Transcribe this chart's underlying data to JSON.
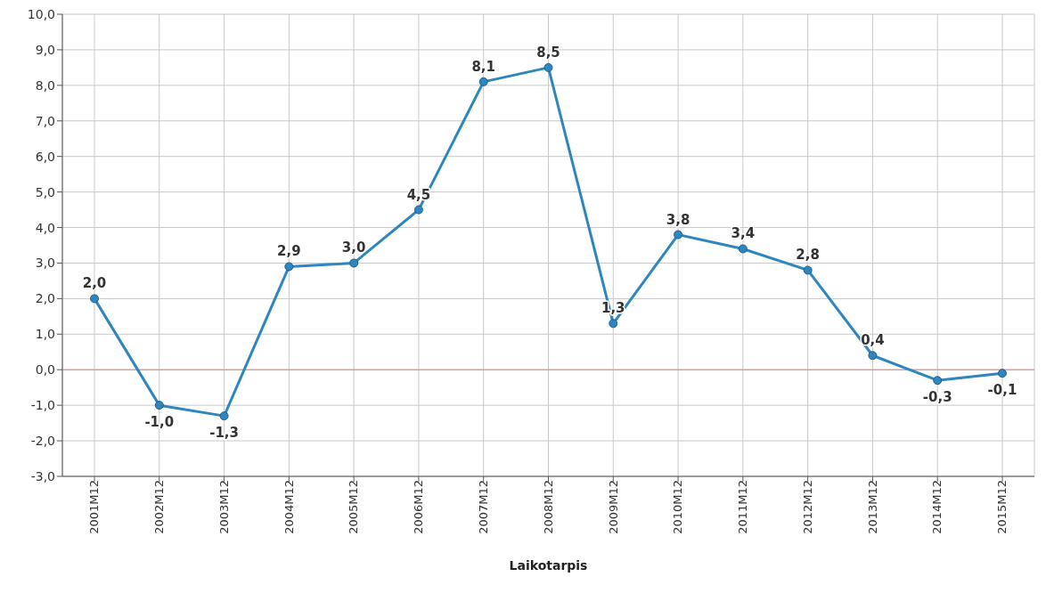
{
  "chart_data": {
    "type": "line",
    "xlabel": "Laikotarpis",
    "categories": [
      "2001M12",
      "2002M12",
      "2003M12",
      "2004M12",
      "2005M12",
      "2006M12",
      "2007M12",
      "2008M12",
      "2009M12",
      "2010M12",
      "2011M12",
      "2012M12",
      "2013M12",
      "2014M12",
      "2015M12"
    ],
    "series": [
      {
        "color": "#2e86c1",
        "values": [
          2.0,
          -1.0,
          -1.3,
          2.9,
          3.0,
          4.5,
          8.1,
          8.5,
          1.3,
          3.8,
          3.4,
          2.8,
          0.4,
          -0.3,
          -0.1
        ],
        "value_labels": [
          "2,0",
          "-1,0",
          "-1,3",
          "2,9",
          "3,0",
          "4,5",
          "8,1",
          "8,5",
          "1,3",
          "3,8",
          "3,4",
          "2,8",
          "0,4",
          "-0,3",
          "-0,1"
        ]
      }
    ],
    "ylim": [
      -3,
      10
    ],
    "yticks": [
      {
        "value": -3,
        "label": "-3,0"
      },
      {
        "value": -2,
        "label": "-2,0"
      },
      {
        "value": -1,
        "label": "-1,0"
      },
      {
        "value": 0,
        "label": "0,0"
      },
      {
        "value": 1,
        "label": "1,0"
      },
      {
        "value": 2,
        "label": "2,0"
      },
      {
        "value": 3,
        "label": "3,0"
      },
      {
        "value": 4,
        "label": "4,0"
      },
      {
        "value": 5,
        "label": "5,0"
      },
      {
        "value": 6,
        "label": "6,0"
      },
      {
        "value": 7,
        "label": "7,0"
      },
      {
        "value": 8,
        "label": "8,0"
      },
      {
        "value": 9,
        "label": "9,0"
      },
      {
        "value": 10,
        "label": "10,0"
      }
    ],
    "ref_lines": [
      {
        "axis": "y",
        "value": 0,
        "color": "#e08080"
      }
    ],
    "grid": true,
    "legend": false,
    "marker": "circle",
    "line_style": "solid"
  }
}
